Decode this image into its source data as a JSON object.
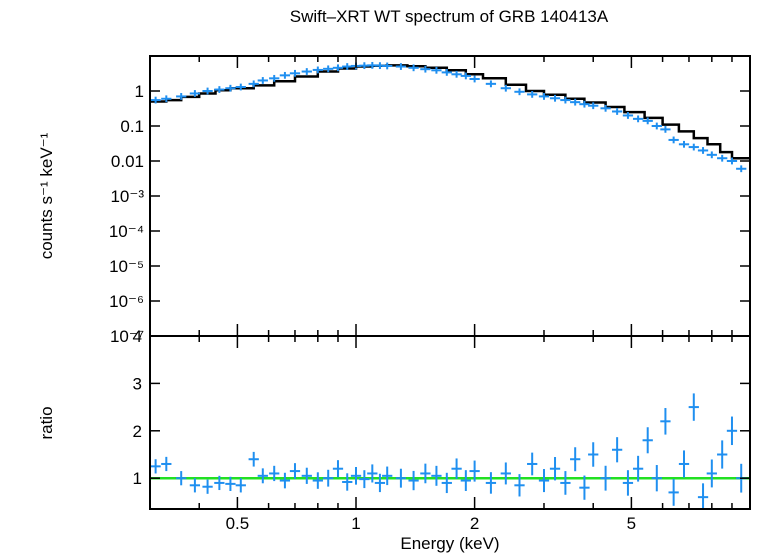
{
  "chart_data": [
    {
      "type": "scatter",
      "title": "Swift–XRT WT spectrum of GRB 140413A",
      "xlabel": "",
      "ylabel": "counts s⁻¹ keV⁻¹",
      "x_scale": "log",
      "y_scale": "log",
      "xlim": [
        0.3,
        10
      ],
      "ylim": [
        1e-07,
        10
      ],
      "y_tick_labels": [
        {
          "value": 1,
          "label": "1"
        },
        {
          "value": 0.1,
          "label": "0.1"
        },
        {
          "value": 0.01,
          "label": "0.01"
        },
        {
          "value": 0.001,
          "label": "10⁻³"
        },
        {
          "value": 0.0001,
          "label": "10⁻⁴"
        },
        {
          "value": 1e-05,
          "label": "10⁻⁵"
        },
        {
          "value": 1e-06,
          "label": "10⁻⁶"
        },
        {
          "value": 1e-07,
          "label": "10⁻⁷"
        }
      ],
      "series": [
        {
          "style": "data points with error bars",
          "color": "#1f8ff0",
          "x": [
            0.31,
            0.33,
            0.36,
            0.39,
            0.42,
            0.45,
            0.48,
            0.51,
            0.55,
            0.58,
            0.62,
            0.66,
            0.7,
            0.75,
            0.8,
            0.85,
            0.9,
            0.95,
            1.0,
            1.05,
            1.1,
            1.15,
            1.2,
            1.3,
            1.4,
            1.5,
            1.6,
            1.7,
            1.8,
            1.9,
            2.0,
            2.2,
            2.4,
            2.6,
            2.8,
            3.0,
            3.2,
            3.4,
            3.6,
            3.8,
            4.0,
            4.3,
            4.6,
            4.9,
            5.2,
            5.5,
            5.8,
            6.1,
            6.4,
            6.8,
            7.2,
            7.6,
            8.0,
            8.5,
            9.0,
            9.5
          ],
          "y": [
            0.55,
            0.6,
            0.7,
            0.85,
            1.0,
            1.1,
            1.2,
            1.3,
            1.6,
            2.0,
            2.3,
            2.8,
            3.2,
            3.6,
            4.0,
            4.3,
            4.6,
            5.0,
            5.2,
            5.3,
            5.4,
            5.3,
            5.2,
            5.0,
            4.6,
            4.2,
            3.9,
            3.4,
            3.0,
            2.7,
            2.2,
            1.6,
            1.2,
            0.95,
            0.8,
            0.7,
            0.62,
            0.55,
            0.48,
            0.42,
            0.38,
            0.32,
            0.26,
            0.2,
            0.16,
            0.14,
            0.1,
            0.08,
            0.04,
            0.03,
            0.025,
            0.02,
            0.015,
            0.012,
            0.01,
            0.006
          ]
        },
        {
          "style": "model step line",
          "color": "#000000",
          "x": [
            0.3,
            0.33,
            0.36,
            0.4,
            0.44,
            0.48,
            0.55,
            0.62,
            0.7,
            0.8,
            0.9,
            1.0,
            1.1,
            1.2,
            1.35,
            1.5,
            1.7,
            1.9,
            2.1,
            2.4,
            2.7,
            3.0,
            3.4,
            3.8,
            4.3,
            4.8,
            5.4,
            6.0,
            6.6,
            7.2,
            7.8,
            8.4,
            9.0,
            10.0
          ],
          "y": [
            0.5,
            0.55,
            0.68,
            0.85,
            1.05,
            1.2,
            1.45,
            1.9,
            2.6,
            3.6,
            4.4,
            5.0,
            5.3,
            5.4,
            5.1,
            4.6,
            3.9,
            3.0,
            2.3,
            1.5,
            1.0,
            0.78,
            0.6,
            0.47,
            0.35,
            0.25,
            0.17,
            0.11,
            0.07,
            0.045,
            0.03,
            0.018,
            0.012,
            0.008
          ]
        }
      ]
    },
    {
      "type": "scatter",
      "title": "",
      "xlabel": "Energy (keV)",
      "ylabel": "ratio",
      "x_scale": "log",
      "y_scale": "linear",
      "xlim": [
        0.3,
        10
      ],
      "ylim": [
        0.35,
        4
      ],
      "x_tick_labels": [
        {
          "value": 0.5,
          "label": "0.5"
        },
        {
          "value": 1,
          "label": "1"
        },
        {
          "value": 2,
          "label": "2"
        },
        {
          "value": 5,
          "label": "5"
        }
      ],
      "y_tick_labels": [
        {
          "value": 1,
          "label": "1"
        },
        {
          "value": 2,
          "label": "2"
        },
        {
          "value": 3,
          "label": "3"
        },
        {
          "value": 4,
          "label": "4"
        }
      ],
      "reference_line": {
        "y": 1,
        "color": "#22e022"
      },
      "series": [
        {
          "style": "data points with error bars",
          "color": "#1f8ff0",
          "x": [
            0.31,
            0.33,
            0.36,
            0.39,
            0.42,
            0.45,
            0.48,
            0.51,
            0.55,
            0.58,
            0.62,
            0.66,
            0.7,
            0.75,
            0.8,
            0.85,
            0.9,
            0.95,
            1.0,
            1.05,
            1.1,
            1.15,
            1.2,
            1.3,
            1.4,
            1.5,
            1.6,
            1.7,
            1.8,
            1.9,
            2.0,
            2.2,
            2.4,
            2.6,
            2.8,
            3.0,
            3.2,
            3.4,
            3.6,
            3.8,
            4.0,
            4.3,
            4.6,
            4.9,
            5.2,
            5.5,
            5.8,
            6.1,
            6.4,
            6.8,
            7.2,
            7.6,
            8.0,
            8.5,
            9.0,
            9.5
          ],
          "y": [
            1.25,
            1.3,
            1.0,
            0.85,
            0.82,
            0.9,
            0.88,
            0.85,
            1.4,
            1.05,
            1.1,
            0.95,
            1.15,
            1.05,
            0.95,
            1.0,
            1.2,
            0.92,
            1.05,
            0.98,
            1.1,
            0.9,
            1.05,
            1.0,
            0.95,
            1.1,
            1.05,
            0.9,
            1.2,
            0.95,
            1.15,
            0.9,
            1.1,
            0.85,
            1.3,
            0.95,
            1.2,
            0.9,
            1.4,
            0.8,
            1.5,
            1.0,
            1.6,
            0.9,
            1.2,
            1.8,
            1.0,
            2.2,
            0.7,
            1.3,
            2.5,
            0.6,
            1.1,
            1.5,
            2.0,
            1.0
          ]
        }
      ]
    }
  ]
}
